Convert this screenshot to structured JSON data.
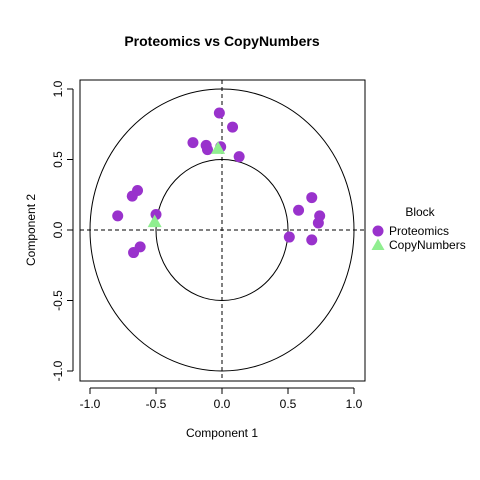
{
  "chart_data": {
    "type": "scatter",
    "title": "Proteomics vs CopyNumbers",
    "xlabel": "Component  1",
    "ylabel": "Component  2",
    "xlim": [
      -1.0,
      1.0
    ],
    "ylim": [
      -1.0,
      1.0
    ],
    "x_ticks": [
      "-1.0",
      "-0.5",
      "0.0",
      "0.5",
      "1.0"
    ],
    "y_ticks": [
      "-1.0",
      "-0.5",
      "0.0",
      "0.5",
      "1.0"
    ],
    "circles_radius": [
      0.5,
      1.0
    ],
    "reference_lines": {
      "x": 0,
      "y": 0
    },
    "grid": false,
    "legend": {
      "title": "Block",
      "placement": "right",
      "entries": [
        {
          "label": "Proteomics",
          "color": "#9932CC",
          "shape": "circle"
        },
        {
          "label": "CopyNumbers",
          "color": "#90EE90",
          "shape": "triangle"
        }
      ]
    },
    "series": [
      {
        "name": "Proteomics",
        "color": "#9932CC",
        "shape": "circle",
        "points": [
          {
            "x": -0.02,
            "y": 0.83
          },
          {
            "x": 0.08,
            "y": 0.73
          },
          {
            "x": -0.22,
            "y": 0.62
          },
          {
            "x": -0.12,
            "y": 0.6
          },
          {
            "x": -0.01,
            "y": 0.59
          },
          {
            "x": -0.11,
            "y": 0.57
          },
          {
            "x": 0.13,
            "y": 0.52
          },
          {
            "x": -0.64,
            "y": 0.28
          },
          {
            "x": -0.68,
            "y": 0.24
          },
          {
            "x": -0.5,
            "y": 0.11
          },
          {
            "x": -0.79,
            "y": 0.1
          },
          {
            "x": -0.67,
            "y": -0.16
          },
          {
            "x": -0.62,
            "y": -0.12
          },
          {
            "x": 0.68,
            "y": 0.23
          },
          {
            "x": 0.58,
            "y": 0.14
          },
          {
            "x": 0.74,
            "y": 0.1
          },
          {
            "x": 0.73,
            "y": 0.05
          },
          {
            "x": 0.51,
            "y": -0.05
          },
          {
            "x": 0.68,
            "y": -0.07
          }
        ]
      },
      {
        "name": "CopyNumbers",
        "color": "#90EE90",
        "shape": "triangle",
        "points": [
          {
            "x": -0.03,
            "y": 0.58
          },
          {
            "x": -0.51,
            "y": 0.06
          }
        ]
      }
    ]
  }
}
